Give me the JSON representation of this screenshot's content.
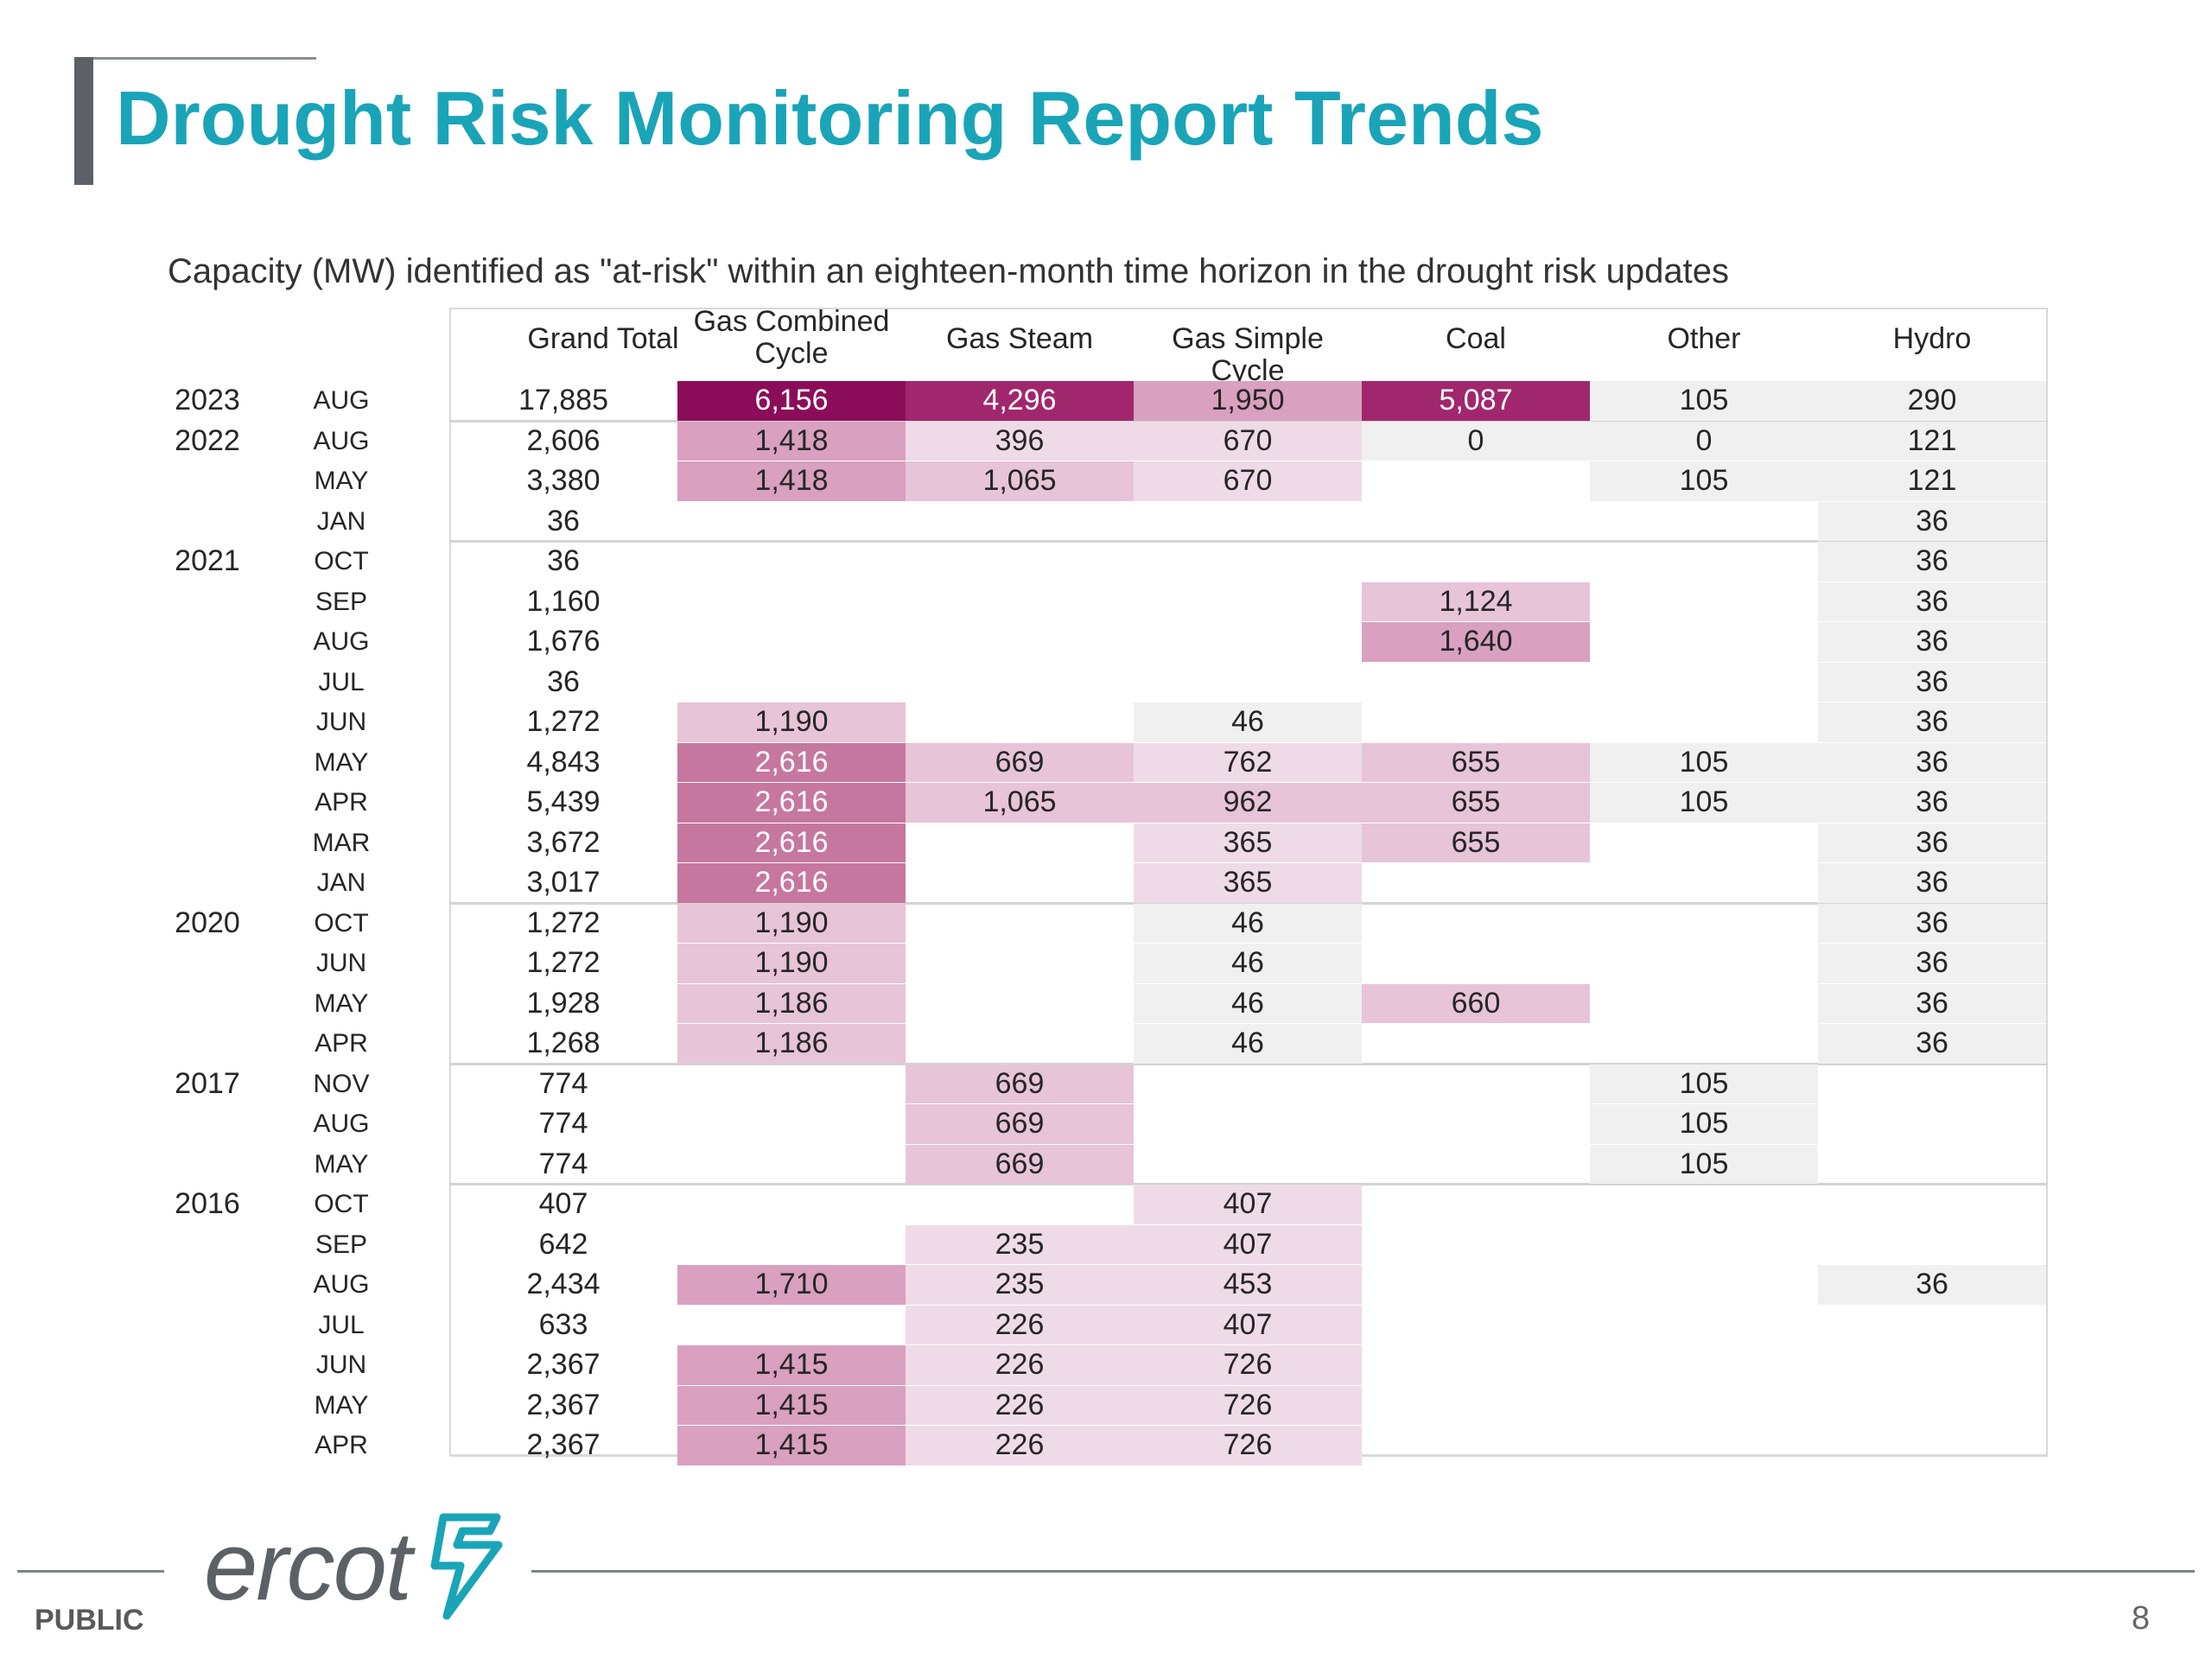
{
  "header": {
    "title": "Drought Risk Monitoring Report Trends",
    "subtitle": "Capacity (MW) identified as \"at-risk\" within an eighteen-month time horizon in the drought risk updates"
  },
  "table": {
    "columns": [
      "Grand Total",
      "Gas Combined Cycle",
      "Gas Steam",
      "Gas Simple Cycle",
      "Coal",
      "Other",
      "Hydro"
    ],
    "rows": [
      {
        "year": "2023",
        "month": "AUG",
        "total": "17,885",
        "cells": [
          "6,156",
          "4,296",
          "1,950",
          "5,087",
          "105",
          "290"
        ]
      },
      {
        "year": "2022",
        "month": "AUG",
        "total": "2,606",
        "cells": [
          "1,418",
          "396",
          "670",
          "0",
          "0",
          "121"
        ]
      },
      {
        "year": "",
        "month": "MAY",
        "total": "3,380",
        "cells": [
          "1,418",
          "1,065",
          "670",
          "",
          "105",
          "121"
        ]
      },
      {
        "year": "",
        "month": "JAN",
        "total": "36",
        "cells": [
          "",
          "",
          "",
          "",
          "",
          "36"
        ]
      },
      {
        "year": "2021",
        "month": "OCT",
        "total": "36",
        "cells": [
          "",
          "",
          "",
          "",
          "",
          "36"
        ]
      },
      {
        "year": "",
        "month": "SEP",
        "total": "1,160",
        "cells": [
          "",
          "",
          "",
          "1,124",
          "",
          "36"
        ]
      },
      {
        "year": "",
        "month": "AUG",
        "total": "1,676",
        "cells": [
          "",
          "",
          "",
          "1,640",
          "",
          "36"
        ]
      },
      {
        "year": "",
        "month": "JUL",
        "total": "36",
        "cells": [
          "",
          "",
          "",
          "",
          "",
          "36"
        ]
      },
      {
        "year": "",
        "month": "JUN",
        "total": "1,272",
        "cells": [
          "1,190",
          "",
          "46",
          "",
          "",
          "36"
        ]
      },
      {
        "year": "",
        "month": "MAY",
        "total": "4,843",
        "cells": [
          "2,616",
          "669",
          "762",
          "655",
          "105",
          "36"
        ]
      },
      {
        "year": "",
        "month": "APR",
        "total": "5,439",
        "cells": [
          "2,616",
          "1,065",
          "962",
          "655",
          "105",
          "36"
        ]
      },
      {
        "year": "",
        "month": "MAR",
        "total": "3,672",
        "cells": [
          "2,616",
          "",
          "365",
          "655",
          "",
          "36"
        ]
      },
      {
        "year": "",
        "month": "JAN",
        "total": "3,017",
        "cells": [
          "2,616",
          "",
          "365",
          "",
          "",
          "36"
        ]
      },
      {
        "year": "2020",
        "month": "OCT",
        "total": "1,272",
        "cells": [
          "1,190",
          "",
          "46",
          "",
          "",
          "36"
        ]
      },
      {
        "year": "",
        "month": "JUN",
        "total": "1,272",
        "cells": [
          "1,190",
          "",
          "46",
          "",
          "",
          "36"
        ]
      },
      {
        "year": "",
        "month": "MAY",
        "total": "1,928",
        "cells": [
          "1,186",
          "",
          "46",
          "660",
          "",
          "36"
        ]
      },
      {
        "year": "",
        "month": "APR",
        "total": "1,268",
        "cells": [
          "1,186",
          "",
          "46",
          "",
          "",
          "36"
        ]
      },
      {
        "year": "2017",
        "month": "NOV",
        "total": "774",
        "cells": [
          "",
          "669",
          "",
          "",
          "105",
          ""
        ]
      },
      {
        "year": "",
        "month": "AUG",
        "total": "774",
        "cells": [
          "",
          "669",
          "",
          "",
          "105",
          ""
        ]
      },
      {
        "year": "",
        "month": "MAY",
        "total": "774",
        "cells": [
          "",
          "669",
          "",
          "",
          "105",
          ""
        ]
      },
      {
        "year": "2016",
        "month": "OCT",
        "total": "407",
        "cells": [
          "",
          "",
          "407",
          "",
          "",
          ""
        ]
      },
      {
        "year": "",
        "month": "SEP",
        "total": "642",
        "cells": [
          "",
          "235",
          "407",
          "",
          "",
          ""
        ]
      },
      {
        "year": "",
        "month": "AUG",
        "total": "2,434",
        "cells": [
          "1,710",
          "235",
          "453",
          "",
          "",
          "36"
        ]
      },
      {
        "year": "",
        "month": "JUL",
        "total": "633",
        "cells": [
          "",
          "226",
          "407",
          "",
          "",
          ""
        ]
      },
      {
        "year": "",
        "month": "JUN",
        "total": "2,367",
        "cells": [
          "1,415",
          "226",
          "726",
          "",
          "",
          ""
        ]
      },
      {
        "year": "",
        "month": "MAY",
        "total": "2,367",
        "cells": [
          "1,415",
          "226",
          "726",
          "",
          "",
          ""
        ]
      },
      {
        "year": "",
        "month": "APR",
        "total": "2,367",
        "cells": [
          "1,415",
          "226",
          "726",
          "",
          "",
          ""
        ]
      }
    ]
  },
  "heat_colors": {
    "dark": "#8b0d5a",
    "strong": "#a0276d",
    "medium": "#c6779f",
    "mid_light": "#d9a0c0",
    "light": "#e7c4d8",
    "pale": "#efdbe7",
    "grey": "#f0f0f0"
  },
  "footer": {
    "classification": "PUBLIC",
    "logo_text": "ercot",
    "page_number": "8"
  }
}
